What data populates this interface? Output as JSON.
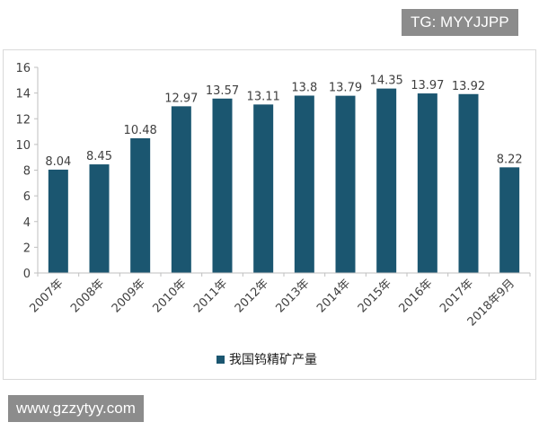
{
  "watermark_top": "TG: MYYJJPP",
  "watermark_bottom": "www.gzzytyy.com",
  "chart_data": {
    "type": "bar",
    "title": "",
    "xlabel": "",
    "ylabel": "",
    "categories": [
      "2007年",
      "2008年",
      "2009年",
      "2010年",
      "2011年",
      "2012年",
      "2013年",
      "2014年",
      "2015年",
      "2016年",
      "2017年",
      "2018年9月"
    ],
    "series": [
      {
        "name": "我国钨精矿产量",
        "values": [
          8.04,
          8.45,
          10.48,
          12.97,
          13.57,
          13.11,
          13.8,
          13.79,
          14.35,
          13.97,
          13.92,
          8.22
        ],
        "labels": [
          "8.04",
          "8.45",
          "10.48",
          "12.97",
          "13.57",
          "13.11",
          "13.8",
          "13.79",
          "14.35",
          "13.97",
          "13.92",
          "8.22"
        ]
      }
    ],
    "ylim": [
      0,
      16
    ],
    "yticks": [
      0,
      2,
      4,
      6,
      8,
      10,
      12,
      14,
      16
    ],
    "grid": false,
    "legend": "bottom",
    "colors": {
      "bar": "#1b5670",
      "axis": "#bfbfbf",
      "text": "#404040"
    }
  }
}
